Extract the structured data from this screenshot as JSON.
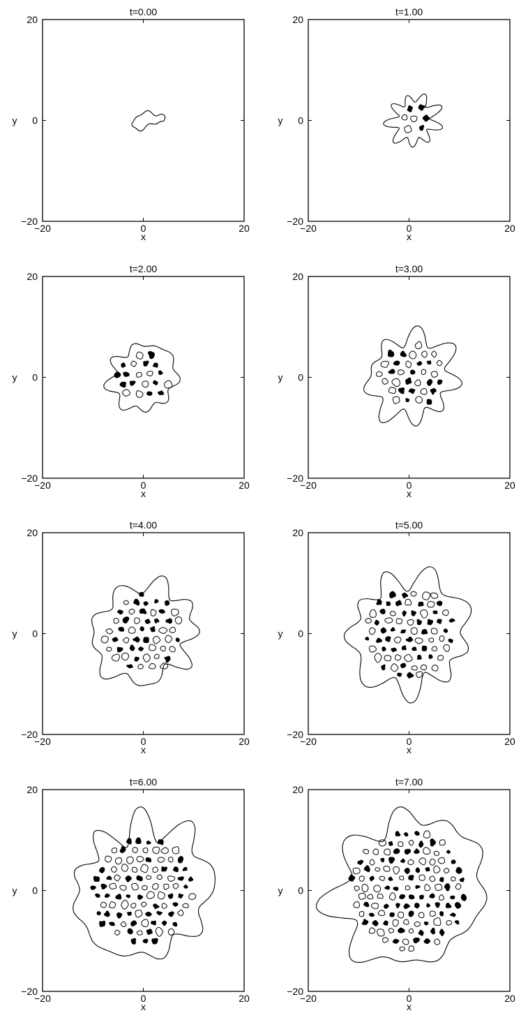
{
  "figure": {
    "axis_xlabel": "x",
    "axis_ylabel": "y",
    "colors": {
      "line": "#000000",
      "fill": "#000000",
      "background": "#ffffff"
    }
  },
  "chart_data": [
    {
      "type": "contour",
      "title": "t=0.00",
      "xlabel": "x",
      "ylabel": "y",
      "xlim": [
        -20,
        20
      ],
      "ylim": [
        -20,
        20
      ],
      "x_ticks": [
        "−20",
        "0",
        "20"
      ],
      "y_ticks": [
        "−20",
        "0",
        "20"
      ],
      "grid": false,
      "legend": "none",
      "pattern_radius": 3,
      "pattern_seed": 3,
      "pattern_cells": 0,
      "center": [
        1,
        0
      ]
    },
    {
      "type": "contour",
      "title": "t=1.00",
      "xlabel": "x",
      "ylabel": "y",
      "xlim": [
        -20,
        20
      ],
      "ylim": [
        -20,
        20
      ],
      "x_ticks": [
        "−20",
        "0",
        "20"
      ],
      "y_ticks": [
        "−20",
        "0",
        "20"
      ],
      "grid": false,
      "legend": "none",
      "pattern_radius": 4.5,
      "pattern_seed": 11,
      "pattern_cells": 9,
      "center": [
        1,
        0
      ]
    },
    {
      "type": "contour",
      "title": "t=2.00",
      "xlabel": "x",
      "ylabel": "y",
      "xlim": [
        -20,
        20
      ],
      "ylim": [
        -20,
        20
      ],
      "x_ticks": [
        "−20",
        "0",
        "20"
      ],
      "y_ticks": [
        "−20",
        "0",
        "20"
      ],
      "grid": false,
      "legend": "none",
      "pattern_radius": 6.5,
      "pattern_seed": 23,
      "pattern_cells": 20,
      "center": [
        0,
        0
      ]
    },
    {
      "type": "contour",
      "title": "t=3.00",
      "xlabel": "x",
      "ylabel": "y",
      "xlim": [
        -20,
        20
      ],
      "ylim": [
        -20,
        20
      ],
      "x_ticks": [
        "−20",
        "0",
        "20"
      ],
      "y_ticks": [
        "−20",
        "0",
        "20"
      ],
      "grid": false,
      "legend": "none",
      "pattern_radius": 8.3,
      "pattern_seed": 37,
      "pattern_cells": 36,
      "center": [
        0.5,
        0
      ]
    },
    {
      "type": "contour",
      "title": "t=4.00",
      "xlabel": "x",
      "ylabel": "y",
      "xlim": [
        -20,
        20
      ],
      "ylim": [
        -20,
        20
      ],
      "x_ticks": [
        "−20",
        "0",
        "20"
      ],
      "y_ticks": [
        "−20",
        "0",
        "20"
      ],
      "grid": false,
      "legend": "none",
      "pattern_radius": 9.8,
      "pattern_seed": 51,
      "pattern_cells": 52,
      "center": [
        0,
        0
      ]
    },
    {
      "type": "contour",
      "title": "t=5.00",
      "xlabel": "x",
      "ylabel": "y",
      "xlim": [
        -20,
        20
      ],
      "ylim": [
        -20,
        20
      ],
      "x_ticks": [
        "−20",
        "0",
        "20"
      ],
      "y_ticks": [
        "−20",
        "0",
        "20"
      ],
      "grid": false,
      "legend": "none",
      "pattern_radius": 11.3,
      "pattern_seed": 67,
      "pattern_cells": 72,
      "center": [
        0,
        0
      ]
    },
    {
      "type": "contour",
      "title": "t=6.00",
      "xlabel": "x",
      "ylabel": "y",
      "xlim": [
        -20,
        20
      ],
      "ylim": [
        -20,
        20
      ],
      "x_ticks": [
        "−20",
        "0",
        "20"
      ],
      "y_ticks": [
        "−20",
        "0",
        "20"
      ],
      "grid": false,
      "legend": "none",
      "pattern_radius": 13.2,
      "pattern_seed": 83,
      "pattern_cells": 98,
      "center": [
        0,
        0
      ]
    },
    {
      "type": "contour",
      "title": "t=7.00",
      "xlabel": "x",
      "ylabel": "y",
      "xlim": [
        -20,
        20
      ],
      "ylim": [
        -20,
        20
      ],
      "x_ticks": [
        "−20",
        "0",
        "20"
      ],
      "y_ticks": [
        "−20",
        "0",
        "20"
      ],
      "grid": false,
      "legend": "none",
      "pattern_radius": 14.6,
      "pattern_seed": 97,
      "pattern_cells": 125,
      "center": [
        0,
        0
      ]
    }
  ]
}
